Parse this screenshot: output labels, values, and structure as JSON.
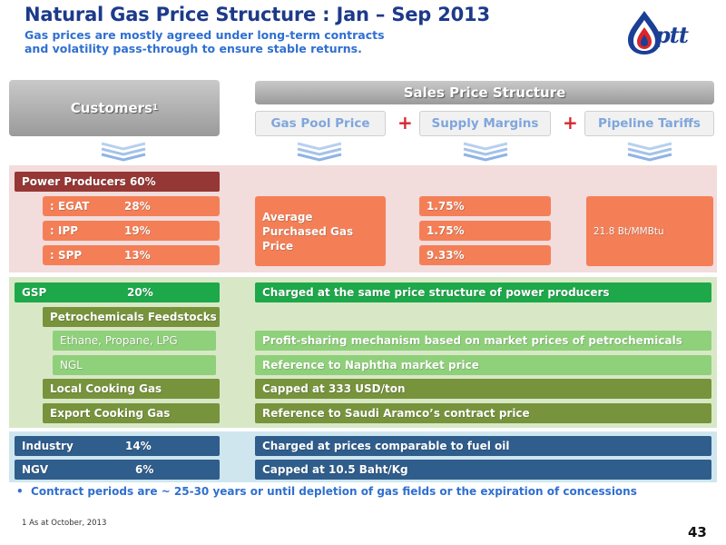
{
  "title": "Natural Gas Price Structure : Jan – Sep 2013",
  "subtitle_lines": [
    "Gas prices are mostly agreed under long-term contracts",
    "and volatility pass-through to ensure stable returns."
  ],
  "logo": {
    "text": "ptt",
    "icon": "ptt-flame-logo-icon"
  },
  "headers": {
    "customers": "Customers",
    "customers_sup": "1",
    "sales_price_structure": "Sales Price Structure",
    "gas_pool_price": "Gas Pool Price",
    "supply_margins": "Supply Margins",
    "pipeline_tariffs": "Pipeline Tariffs",
    "plus": "+"
  },
  "power": {
    "label": "Power Producers 60%",
    "rows": [
      {
        "name": ": EGAT",
        "share": "28%",
        "margin": "1.75%"
      },
      {
        "name": ": IPP",
        "share": "19%",
        "margin": "1.75%"
      },
      {
        "name": ": SPP",
        "share": "13%",
        "margin": "9.33%"
      }
    ],
    "pool_price": "Average Purchased Gas Price",
    "tariff": "21.8 Bt/MMBtu"
  },
  "gsp": {
    "label": "GSP",
    "share": "20%",
    "note": "Charged at the same price structure of power producers",
    "petrochemicals": "Petrochemicals Feedstocks",
    "items": [
      {
        "label": "Ethane, Propane, LPG",
        "note": "Profit-sharing mechanism based on market prices of petrochemicals"
      },
      {
        "label": "NGL",
        "note": "Reference to Naphtha market price"
      },
      {
        "label": "Local Cooking Gas",
        "note": "Capped at 333 USD/ton"
      },
      {
        "label": "Export Cooking Gas",
        "note": "Reference to Saudi Aramco’s contract price"
      }
    ]
  },
  "industry": {
    "label": "Industry",
    "share": "14%",
    "note": "Charged at prices comparable to fuel oil"
  },
  "ngv": {
    "label": "NGV",
    "share": "6%",
    "note": "Capped at 10.5 Baht/Kg"
  },
  "bullet": "Contract periods are ~ 25-30 years or until depletion of gas fields or the expiration of concessions",
  "footnote": "1  As  at October, 2013",
  "page_number": "43",
  "colors": {
    "title": "#1d3a8a",
    "subtitle": "#2f6fd0",
    "power_header": "#953734",
    "power_rows": "#f47f57",
    "gsp": "#1da84a",
    "gsp_sub": "#77933c",
    "gsp_light": "#8fd07a",
    "industry": "#2f5d8c",
    "plus": "#d9262b"
  }
}
